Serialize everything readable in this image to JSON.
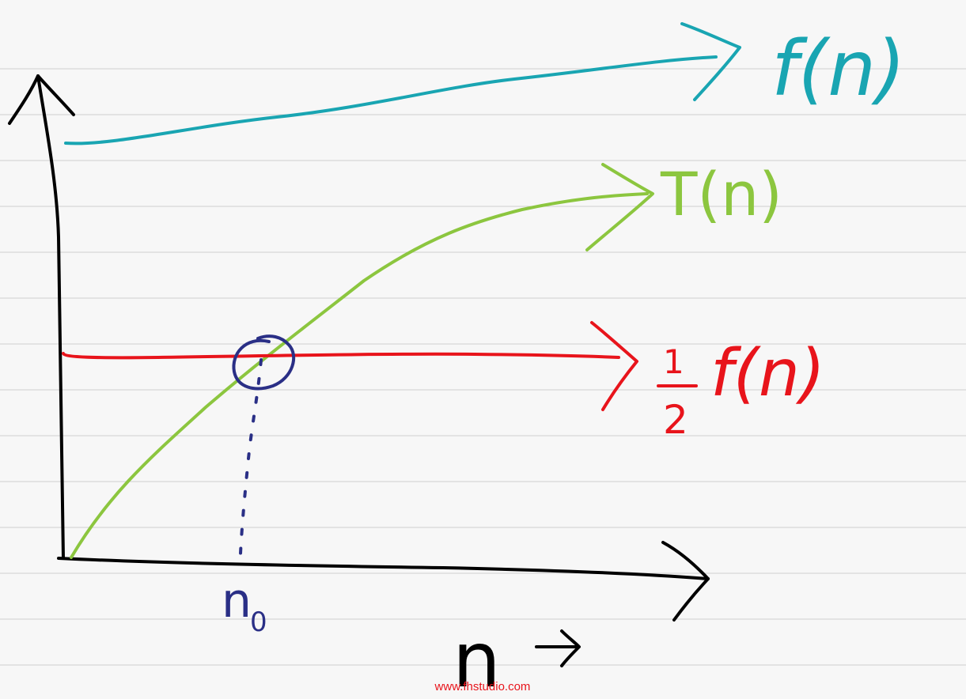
{
  "labels": {
    "f_curve": "f(n)",
    "t_curve": "T(n)",
    "half_numerator": "1",
    "half_denominator": "2",
    "half_f_curve": "f(n)",
    "n0_main": "n",
    "n0_sub": "0",
    "x_axis": "n"
  },
  "watermark": "www.fhstudio.com",
  "colors": {
    "paper": "#f7f7f7",
    "rule_lines": "#cfcfcf",
    "axes": "#000000",
    "f_curve": "#19a5b2",
    "t_curve": "#8cc63f",
    "half_f_curve": "#e8141b",
    "n0_marker": "#2a2f86",
    "watermark": "#e8141b"
  }
}
